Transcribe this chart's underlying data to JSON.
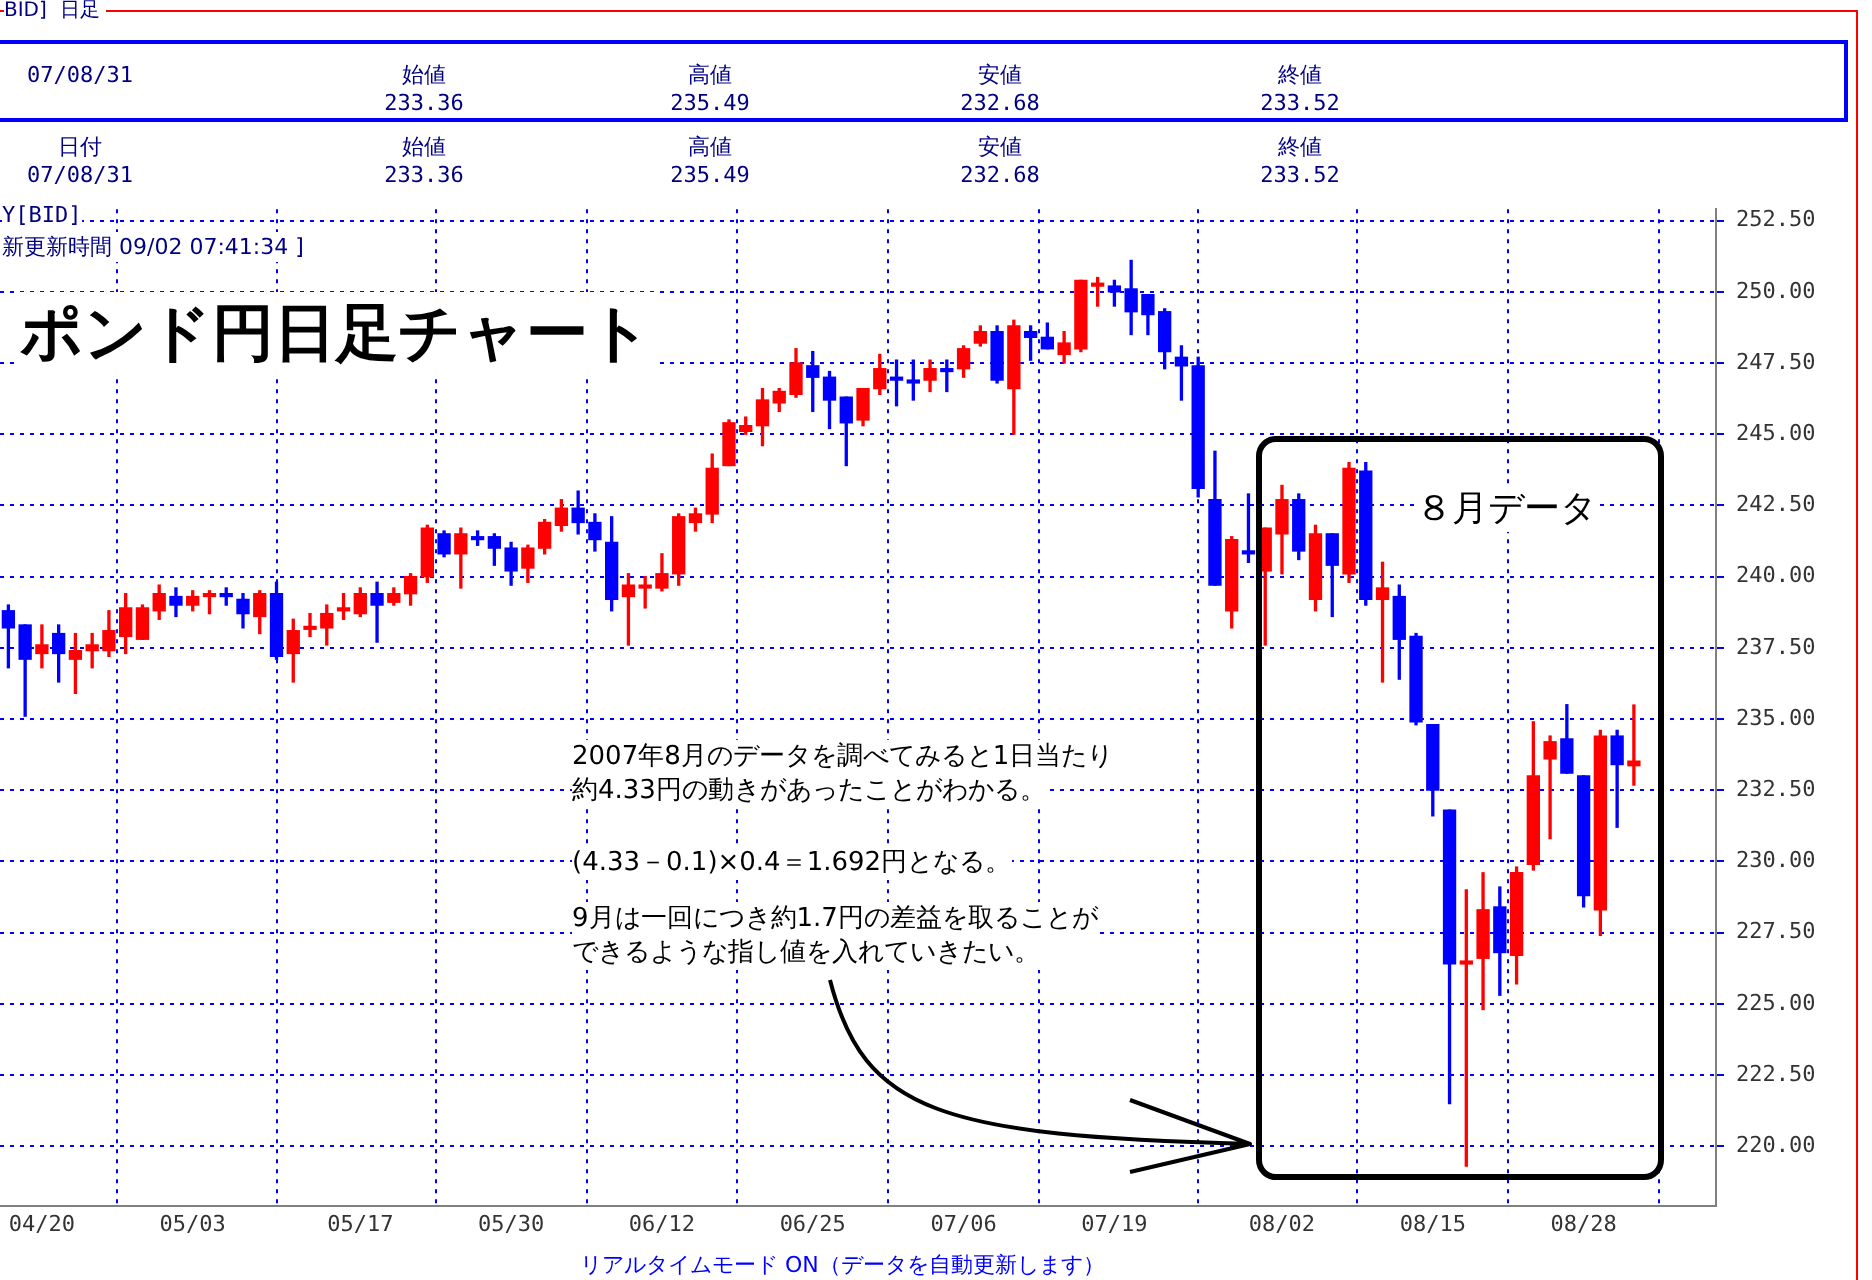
{
  "chart_data": {
    "type": "candlestick",
    "title": "ポンド円日足チャート",
    "categories": [
      null,
      null,
      "04/20",
      null,
      null,
      null,
      null,
      null,
      null,
      null,
      null,
      "05/03",
      null,
      null,
      null,
      null,
      null,
      null,
      null,
      null,
      null,
      "05/17",
      null,
      null,
      null,
      null,
      null,
      null,
      null,
      null,
      "05/30",
      null,
      null,
      null,
      null,
      null,
      null,
      null,
      null,
      "06/12",
      null,
      null,
      null,
      null,
      null,
      null,
      null,
      null,
      "06/25",
      null,
      null,
      null,
      null,
      null,
      null,
      null,
      null,
      "07/06",
      null,
      null,
      null,
      null,
      null,
      null,
      null,
      null,
      "07/19",
      null,
      null,
      null,
      null,
      null,
      null,
      null,
      null,
      null,
      "08/02",
      null,
      null,
      null,
      null,
      null,
      null,
      null,
      null,
      "08/15",
      null,
      null,
      null,
      null,
      null,
      null,
      null,
      null,
      "08/28",
      null,
      null,
      null
    ],
    "ohlc": [
      [
        238.8,
        239.0,
        236.8,
        238.2
      ],
      [
        238.3,
        238.3,
        235.1,
        237.1
      ],
      [
        237.3,
        238.3,
        236.8,
        237.6
      ],
      [
        238.0,
        238.3,
        236.3,
        237.3
      ],
      [
        237.1,
        238.0,
        235.9,
        237.4
      ],
      [
        237.4,
        238.0,
        236.8,
        237.6
      ],
      [
        237.4,
        238.8,
        237.2,
        238.1
      ],
      [
        237.9,
        239.4,
        237.3,
        238.9
      ],
      [
        237.8,
        239.0,
        237.8,
        238.9
      ],
      [
        238.8,
        239.7,
        238.5,
        239.4
      ],
      [
        239.3,
        239.6,
        238.6,
        239.0
      ],
      [
        239.0,
        239.5,
        238.8,
        239.3
      ],
      [
        239.3,
        239.5,
        238.7,
        239.4
      ],
      [
        239.4,
        239.6,
        239.0,
        239.3
      ],
      [
        239.2,
        239.4,
        238.2,
        238.7
      ],
      [
        238.6,
        239.5,
        238.0,
        239.4
      ],
      [
        239.4,
        239.8,
        237.1,
        237.2
      ],
      [
        237.3,
        238.5,
        236.3,
        238.1
      ],
      [
        238.15,
        238.7,
        237.9,
        238.25
      ],
      [
        238.2,
        239.0,
        237.6,
        238.7
      ],
      [
        238.8,
        239.4,
        238.5,
        238.9
      ],
      [
        238.7,
        239.6,
        238.6,
        239.4
      ],
      [
        239.4,
        239.8,
        237.7,
        239.0
      ],
      [
        239.1,
        239.6,
        239.0,
        239.4
      ],
      [
        239.4,
        240.1,
        239.0,
        240.0
      ],
      [
        240.0,
        241.8,
        239.8,
        241.7
      ],
      [
        241.5,
        241.6,
        240.7,
        240.8
      ],
      [
        240.8,
        241.7,
        239.6,
        241.5
      ],
      [
        241.4,
        241.6,
        241.1,
        241.3
      ],
      [
        241.4,
        241.5,
        240.4,
        241.0
      ],
      [
        241.0,
        241.2,
        239.7,
        240.2
      ],
      [
        240.3,
        241.1,
        239.8,
        241.0
      ],
      [
        241.0,
        242.0,
        240.8,
        241.9
      ],
      [
        241.8,
        242.7,
        241.6,
        242.4
      ],
      [
        242.4,
        243.0,
        241.5,
        241.9
      ],
      [
        241.9,
        242.2,
        240.9,
        241.3
      ],
      [
        241.2,
        242.1,
        238.8,
        239.2
      ],
      [
        239.3,
        240.1,
        237.6,
        239.7
      ],
      [
        239.6,
        240.0,
        238.9,
        239.7
      ],
      [
        239.6,
        240.8,
        239.5,
        240.1
      ],
      [
        240.1,
        242.2,
        239.7,
        242.1
      ],
      [
        241.9,
        242.4,
        241.6,
        242.2
      ],
      [
        242.2,
        244.3,
        241.9,
        243.8
      ],
      [
        243.9,
        245.5,
        243.9,
        245.4
      ],
      [
        245.1,
        245.6,
        245.0,
        245.3
      ],
      [
        245.3,
        246.6,
        244.6,
        246.2
      ],
      [
        246.1,
        246.6,
        245.8,
        246.5
      ],
      [
        246.4,
        248.0,
        246.3,
        247.5
      ],
      [
        247.4,
        247.9,
        245.8,
        247.0
      ],
      [
        247.0,
        247.2,
        245.2,
        246.2
      ],
      [
        246.3,
        246.3,
        243.9,
        245.4
      ],
      [
        245.5,
        246.6,
        245.3,
        246.6
      ],
      [
        246.6,
        247.8,
        246.4,
        247.3
      ],
      [
        247.0,
        247.6,
        246.0,
        246.9
      ],
      [
        246.9,
        247.6,
        246.2,
        246.8
      ],
      [
        246.9,
        247.6,
        246.5,
        247.3
      ],
      [
        247.3,
        247.6,
        246.5,
        247.2
      ],
      [
        247.3,
        248.1,
        247.0,
        248.0
      ],
      [
        248.2,
        248.8,
        248.1,
        248.6
      ],
      [
        248.6,
        248.8,
        246.8,
        246.9
      ],
      [
        246.6,
        249.0,
        245.0,
        248.8
      ],
      [
        248.6,
        248.8,
        247.6,
        248.4
      ],
      [
        248.4,
        248.9,
        248.0,
        248.0
      ],
      [
        247.8,
        248.6,
        247.5,
        248.2
      ],
      [
        248.0,
        250.4,
        247.9,
        250.4
      ],
      [
        250.2,
        250.5,
        249.5,
        250.3
      ],
      [
        250.2,
        250.4,
        249.5,
        250.0
      ],
      [
        250.1,
        251.1,
        248.5,
        249.3
      ],
      [
        249.9,
        249.9,
        248.5,
        249.2
      ],
      [
        249.3,
        249.4,
        247.3,
        247.9
      ],
      [
        247.7,
        248.1,
        246.2,
        247.4
      ],
      [
        247.4,
        247.7,
        242.8,
        243.1
      ],
      [
        242.7,
        244.4,
        239.7,
        239.7
      ],
      [
        238.8,
        241.4,
        238.2,
        241.3
      ],
      [
        240.9,
        242.9,
        240.5,
        240.8
      ],
      [
        240.2,
        241.7,
        237.6,
        241.7
      ],
      [
        241.5,
        243.2,
        240.1,
        242.7
      ],
      [
        242.7,
        242.9,
        240.6,
        240.9
      ],
      [
        239.2,
        241.8,
        238.8,
        241.5
      ],
      [
        241.5,
        241.5,
        238.6,
        240.4
      ],
      [
        240.1,
        244.0,
        239.8,
        243.8
      ],
      [
        243.7,
        244.0,
        239.0,
        239.2
      ],
      [
        239.2,
        240.5,
        236.3,
        239.6
      ],
      [
        239.3,
        239.7,
        236.4,
        237.8
      ],
      [
        237.9,
        238.0,
        234.8,
        234.9
      ],
      [
        234.8,
        234.8,
        231.6,
        232.5
      ],
      [
        231.8,
        231.8,
        221.5,
        226.4
      ],
      [
        226.4,
        229.0,
        219.3,
        226.5
      ],
      [
        226.6,
        229.6,
        224.8,
        228.3
      ],
      [
        228.4,
        229.1,
        225.3,
        226.8
      ],
      [
        226.7,
        229.8,
        225.7,
        229.6
      ],
      [
        229.9,
        234.9,
        229.7,
        233.0
      ],
      [
        233.6,
        234.4,
        230.8,
        234.2
      ],
      [
        234.3,
        235.5,
        233.1,
        233.1
      ],
      [
        233.0,
        233.0,
        228.4,
        228.8
      ],
      [
        228.3,
        234.6,
        227.4,
        234.4
      ],
      [
        234.4,
        234.6,
        231.2,
        233.4
      ],
      [
        233.36,
        235.49,
        232.68,
        233.52
      ]
    ],
    "colors": [
      "#0000ff",
      "#0000ff",
      "#ff0000",
      "#0000ff",
      "#ff0000",
      "#ff0000",
      "#ff0000",
      "#ff0000",
      "#ff0000",
      "#ff0000",
      "#0000ff",
      "#ff0000",
      "#ff0000",
      "#0000ff",
      "#0000ff",
      "#ff0000",
      "#0000ff",
      "#ff0000",
      "#ff0000",
      "#ff0000",
      "#ff0000",
      "#ff0000",
      "#0000ff",
      "#ff0000",
      "#ff0000",
      "#ff0000",
      "#0000ff",
      "#ff0000",
      "#0000ff",
      "#0000ff",
      "#0000ff",
      "#ff0000",
      "#ff0000",
      "#ff0000",
      "#0000ff",
      "#0000ff",
      "#0000ff",
      "#ff0000",
      "#ff0000",
      "#ff0000",
      "#ff0000",
      "#ff0000",
      "#ff0000",
      "#ff0000",
      "#ff0000",
      "#ff0000",
      "#ff0000",
      "#ff0000",
      "#0000ff",
      "#0000ff",
      "#0000ff",
      "#ff0000",
      "#ff0000",
      "#0000ff",
      "#0000ff",
      "#ff0000",
      "#0000ff",
      "#ff0000",
      "#ff0000",
      "#0000ff",
      "#ff0000",
      "#0000ff",
      "#0000ff",
      "#ff0000",
      "#ff0000",
      "#ff0000",
      "#0000ff",
      "#0000ff",
      "#0000ff",
      "#0000ff",
      "#0000ff",
      "#0000ff",
      "#0000ff",
      "#ff0000",
      "#0000ff",
      "#ff0000",
      "#ff0000",
      "#0000ff",
      "#ff0000",
      "#0000ff",
      "#ff0000",
      "#0000ff",
      "#ff0000",
      "#0000ff",
      "#0000ff",
      "#0000ff",
      "#0000ff",
      "#ff0000",
      "#ff0000",
      "#0000ff",
      "#ff0000",
      "#ff0000",
      "#ff0000",
      "#0000ff",
      "#0000ff",
      "#ff0000",
      "#0000ff",
      "#ff0000"
    ],
    "ylim": [
      217.9,
      252.9
    ],
    "yticks": [
      {
        "value": 220,
        "label": "220.00"
      },
      {
        "value": 222.5,
        "label": "222.50"
      },
      {
        "value": 225,
        "label": "225.00"
      },
      {
        "value": 227.5,
        "label": "227.50"
      },
      {
        "value": 230,
        "label": "230.00"
      },
      {
        "value": 232.5,
        "label": "232.50"
      },
      {
        "value": 235,
        "label": "235.00"
      },
      {
        "value": 237.5,
        "label": "237.50"
      },
      {
        "value": 240,
        "label": "240.00"
      },
      {
        "value": 242.5,
        "label": "242.50"
      },
      {
        "value": 245,
        "label": "245.00"
      },
      {
        "value": 247.5,
        "label": "247.50"
      },
      {
        "value": 250,
        "label": "250.00"
      },
      {
        "value": 252.5,
        "label": "252.50"
      }
    ],
    "grid": true,
    "annotations": [
      "BID]  日足",
      "07/08/31",
      "始値\n233.36",
      "高値\n235.49",
      "安値\n232.68",
      "終値\n233.52",
      "日付\n07/08/31",
      "始値\n233.36",
      "高値\n235.49",
      "安値\n232.68",
      "終値\n233.52",
      "Y[BID]",
      "新更新時間 09/02 07:41:34 ]",
      "８月データ",
      "2007年8月のデータを調べてみると1日当たり",
      "約4.33円の動きがあったことがわかる。",
      "(4.33－0.1)×0.4＝1.692円となる。",
      "9月は一回につき約1.7円の差益を取ることが",
      "できるような指し値を入れていきたい。",
      "リアルタイムモード ON（データを自動更新します）"
    ]
  }
}
